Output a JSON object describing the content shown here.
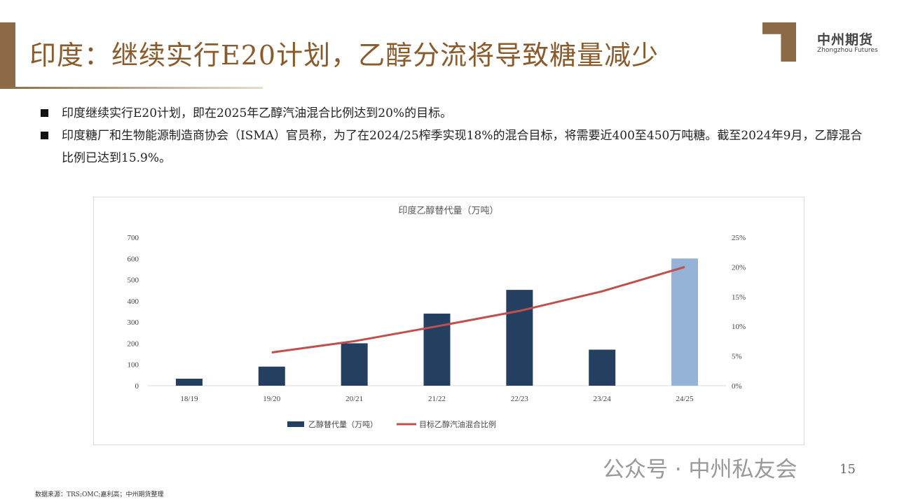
{
  "header": {
    "title": "印度：继续实行E20计划，乙醇分流将导致糖量减少",
    "logo_cn": "中州期货",
    "logo_en": "Zhongzhou Futures"
  },
  "bullets": [
    "印度继续实行E20计划，即在2025年乙醇汽油混合比例达到20%的目标。",
    "印度糖厂和生物能源制造商协会（ISMA）官员称，为了在2024/25榨季实现18%的混合目标，将需要近400至450万吨糖。截至2024年9月，乙醇混合比例已达到15.9%。"
  ],
  "chart_data": {
    "type": "bar",
    "title": "印度乙醇替代量（万吨）",
    "categories": [
      "18/19",
      "19/20",
      "20/21",
      "21/22",
      "22/23",
      "23/24",
      "24/25"
    ],
    "series": [
      {
        "name": "乙醇替代量（万吨）",
        "type": "bar",
        "axis": "left",
        "values": [
          33,
          90,
          200,
          340,
          452,
          170,
          600
        ],
        "color": "#243f60",
        "highlight_last_color": "#95b3d7"
      },
      {
        "name": "目标乙醇汽油混合比例",
        "type": "line",
        "axis": "right",
        "values": [
          null,
          5.6,
          7.5,
          10,
          12.6,
          15.9,
          20
        ],
        "color": "#c0504d"
      }
    ],
    "ylim": [
      0,
      700
    ],
    "yticks": [
      0,
      100,
      200,
      300,
      400,
      500,
      600,
      700
    ],
    "y2lim": [
      0,
      25
    ],
    "y2ticks": [
      "0%",
      "5%",
      "10%",
      "15%",
      "20%",
      "25%"
    ],
    "legend": "bottom"
  },
  "footer": {
    "source": "数据来源：TRS;OMC;嘉利高；中州期货整理",
    "watermark": "公众号 · 中州私友会",
    "page": "15"
  }
}
